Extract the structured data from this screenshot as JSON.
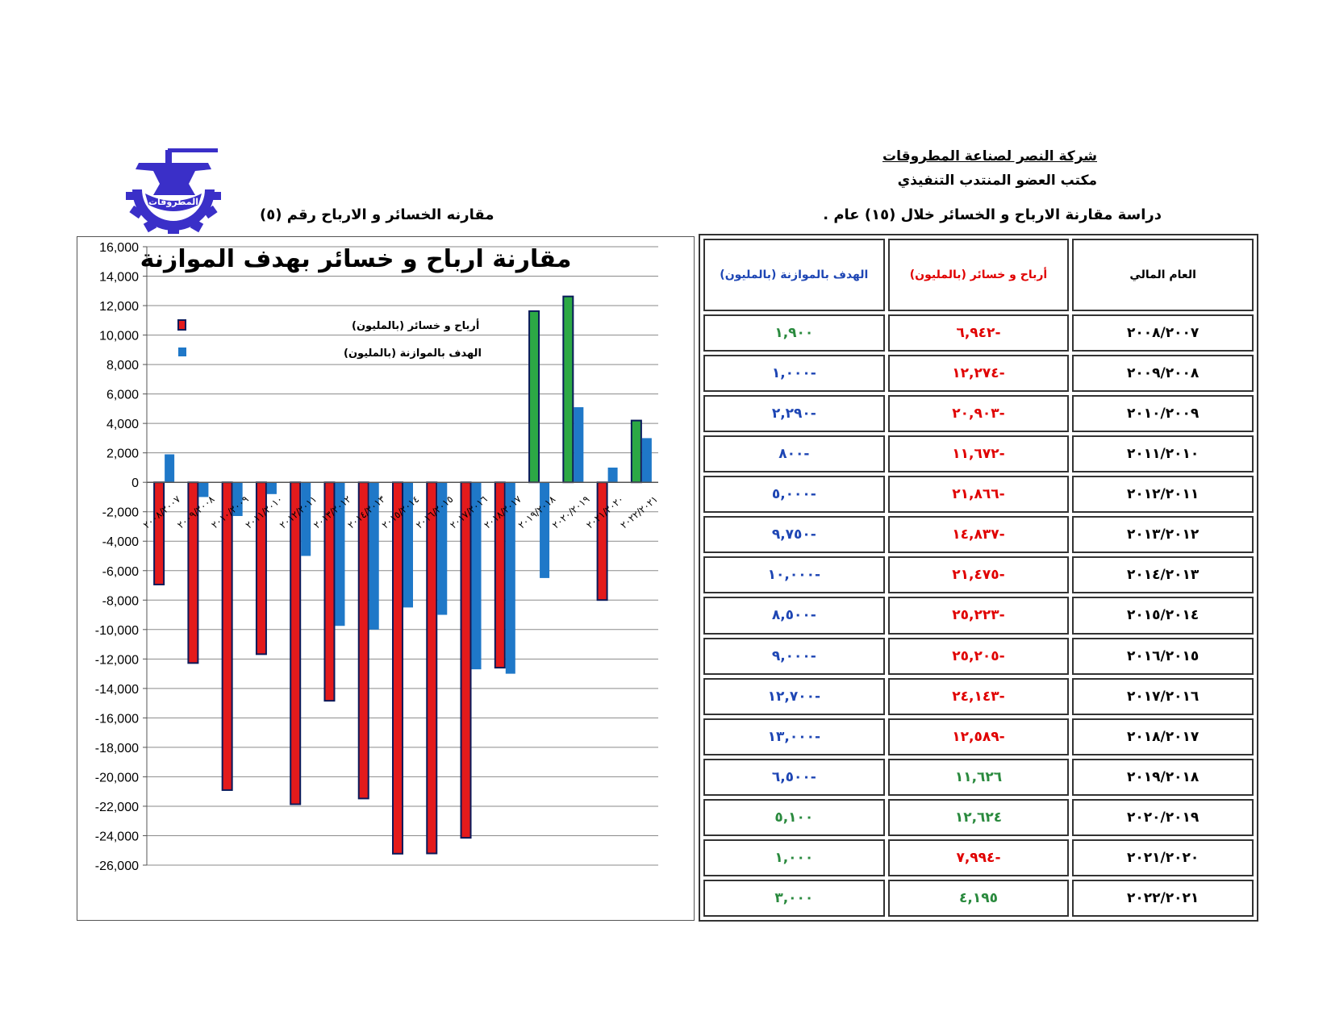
{
  "header": {
    "company": "شركة النصر لصناعة المطروقات",
    "office": "مكتب العضو المنتدب التنفيذي",
    "study_title": "دراسة مقارنة الارباح و الخسائر خلال (١٥) عام .",
    "chart_caption": "مقارنه الخسائر و الارباح رقم (٥)",
    "logo_text": "المطروقات"
  },
  "table": {
    "headers": {
      "year": "العام المالي",
      "profit": "أرباح و خسائر (بالمليون)",
      "target": "الهدف بالموازنة (بالمليون)"
    },
    "rows": [
      {
        "year": "٢٠٠٨/٢٠٠٧",
        "profit": "٦,٩٤٢-",
        "profit_color": "red",
        "target": "١,٩٠٠",
        "target_color": "green"
      },
      {
        "year": "٢٠٠٩/٢٠٠٨",
        "profit": "١٢,٢٧٤-",
        "profit_color": "red",
        "target": "١,٠٠٠-",
        "target_color": "blue"
      },
      {
        "year": "٢٠١٠/٢٠٠٩",
        "profit": "٢٠,٩٠٣-",
        "profit_color": "red",
        "target": "٢,٢٩٠-",
        "target_color": "blue"
      },
      {
        "year": "٢٠١١/٢٠١٠",
        "profit": "١١,٦٧٢-",
        "profit_color": "red",
        "target": "٨٠٠-",
        "target_color": "blue"
      },
      {
        "year": "٢٠١٢/٢٠١١",
        "profit": "٢١,٨٦٦-",
        "profit_color": "red",
        "target": "٥,٠٠٠-",
        "target_color": "blue"
      },
      {
        "year": "٢٠١٣/٢٠١٢",
        "profit": "١٤,٨٣٧-",
        "profit_color": "red",
        "target": "٩,٧٥٠-",
        "target_color": "blue"
      },
      {
        "year": "٢٠١٤/٢٠١٣",
        "profit": "٢١,٤٧٥-",
        "profit_color": "red",
        "target": "١٠,٠٠٠-",
        "target_color": "blue"
      },
      {
        "year": "٢٠١٥/٢٠١٤",
        "profit": "٢٥,٢٢٣-",
        "profit_color": "red",
        "target": "٨,٥٠٠-",
        "target_color": "blue"
      },
      {
        "year": "٢٠١٦/٢٠١٥",
        "profit": "٢٥,٢٠٥-",
        "profit_color": "red",
        "target": "٩,٠٠٠-",
        "target_color": "blue"
      },
      {
        "year": "٢٠١٧/٢٠١٦",
        "profit": "٢٤,١٤٣-",
        "profit_color": "red",
        "target": "١٢,٧٠٠-",
        "target_color": "blue"
      },
      {
        "year": "٢٠١٨/٢٠١٧",
        "profit": "١٢,٥٨٩-",
        "profit_color": "red",
        "target": "١٣,٠٠٠-",
        "target_color": "blue"
      },
      {
        "year": "٢٠١٩/٢٠١٨",
        "profit": "١١,٦٢٦",
        "profit_color": "green",
        "target": "٦,٥٠٠-",
        "target_color": "blue"
      },
      {
        "year": "٢٠٢٠/٢٠١٩",
        "profit": "١٢,٦٢٤",
        "profit_color": "green",
        "target": "٥,١٠٠",
        "target_color": "green"
      },
      {
        "year": "٢٠٢١/٢٠٢٠",
        "profit": "٧,٩٩٤-",
        "profit_color": "red",
        "target": "١,٠٠٠",
        "target_color": "green"
      },
      {
        "year": "٢٠٢٢/٢٠٢١",
        "profit": "٤,١٩٥",
        "profit_color": "green",
        "target": "٣,٠٠٠",
        "target_color": "green"
      }
    ]
  },
  "colors": {
    "loss_bar": "#e31a1c",
    "profit_bar": "#2ca845",
    "target_bar": "#1f78c8",
    "bar_outline": "#0a1a5a",
    "logo_blue": "#3a2fc8"
  },
  "chart_data": {
    "type": "bar",
    "title": "مقارنة ارباح و خسائر بهدف الموازنة",
    "categories": [
      "٢٠٠٨/٢٠٠٧",
      "٢٠٠٩/٢٠٠٨",
      "٢٠١٠/٢٠٠٩",
      "٢٠١١/٢٠١٠",
      "٢٠١٢/٢٠١١",
      "٢٠١٣/٢٠١٢",
      "٢٠١٤/٢٠١٣",
      "٢٠١٥/٢٠١٤",
      "٢٠١٦/٢٠١٥",
      "٢٠١٧/٢٠١٦",
      "٢٠١٨/٢٠١٧",
      "٢٠١٩/٢٠١٨",
      "٢٠٢٠/٢٠١٩",
      "٢٠٢١/٢٠٢٠",
      "٢٠٢٢/٢٠٢١"
    ],
    "series": [
      {
        "name": "أرباح و خسائر (بالمليون)",
        "values": [
          -6942,
          -12274,
          -20903,
          -11672,
          -21866,
          -14837,
          -21475,
          -25223,
          -25205,
          -24143,
          -12589,
          11626,
          12624,
          -7994,
          4195
        ]
      },
      {
        "name": "الهدف بالموازنة (بالمليون)",
        "values": [
          1900,
          -1000,
          -2290,
          -800,
          -5000,
          -9750,
          -10000,
          -8500,
          -9000,
          -12700,
          -13000,
          -6500,
          5100,
          1000,
          3000
        ]
      }
    ],
    "ylim": [
      -26000,
      16000
    ],
    "y_ticks": [
      "16,000",
      "14,000",
      "12,000",
      "10,000",
      "8,000",
      "6,000",
      "4,000",
      "2,000",
      "0",
      "-2,000",
      "-4,000",
      "-6,000",
      "-8,000",
      "-10,000",
      "-12,000",
      "-14,000",
      "-16,000",
      "-18,000",
      "-20,000",
      "-22,000",
      "-24,000",
      "-26,000"
    ],
    "grid": true,
    "legend_position": "top-left"
  }
}
